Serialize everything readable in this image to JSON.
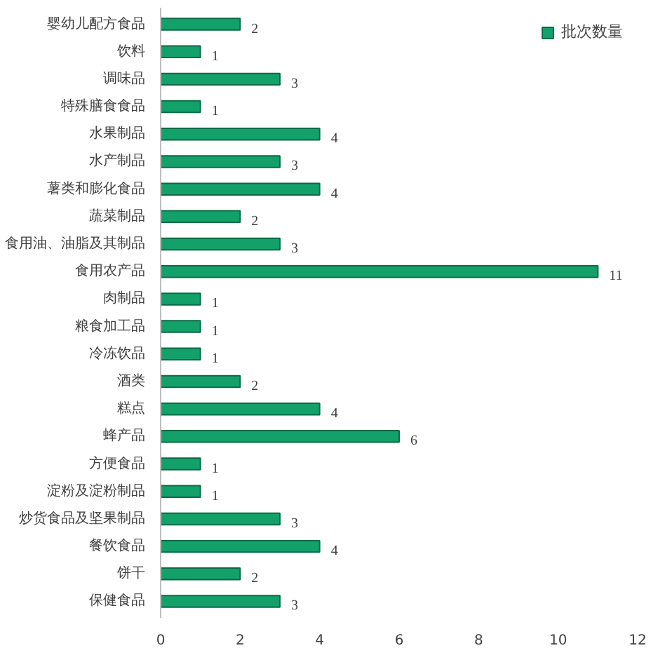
{
  "chart_data": {
    "type": "bar",
    "orientation": "horizontal",
    "categories": [
      "婴幼儿配方食品",
      "饮料",
      "调味品",
      "特殊膳食食品",
      "水果制品",
      "水产制品",
      "薯类和膨化食品",
      "蔬菜制品",
      "食用油、油脂及其制品",
      "食用农产品",
      "肉制品",
      "粮食加工品",
      "冷冻饮品",
      "酒类",
      "糕点",
      "蜂产品",
      "方便食品",
      "淀粉及淀粉制品",
      "炒货食品及坚果制品",
      "餐饮食品",
      "饼干",
      "保健食品"
    ],
    "series": [
      {
        "name": "批次数量",
        "color": "#14a06a",
        "values": [
          2,
          1,
          3,
          1,
          4,
          3,
          4,
          2,
          3,
          11,
          1,
          1,
          1,
          2,
          4,
          6,
          1,
          1,
          3,
          4,
          2,
          3
        ]
      }
    ],
    "xlim": [
      0,
      12
    ],
    "xticks": [
      0,
      2,
      4,
      6,
      8,
      10,
      12
    ],
    "grid": false,
    "legend": "top right",
    "data_labels": true
  }
}
